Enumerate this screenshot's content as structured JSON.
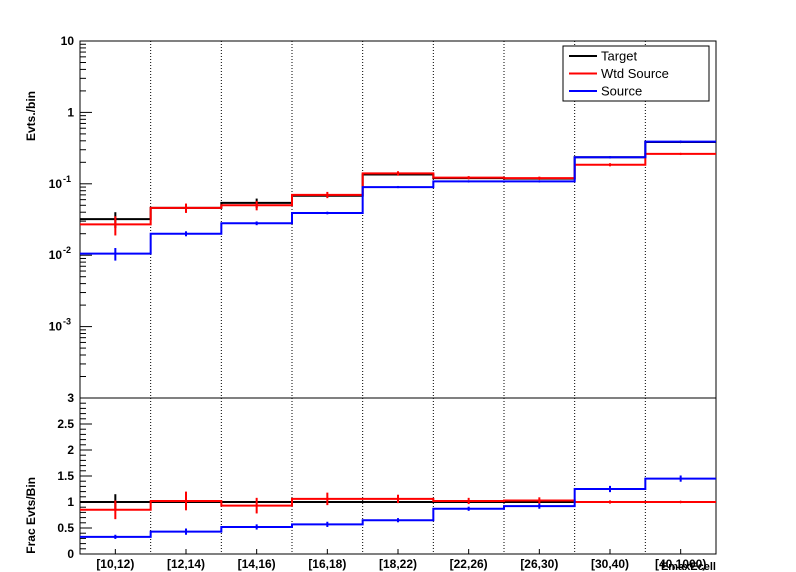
{
  "chart_data": [
    {
      "type": "line",
      "panel": "top",
      "ylabel": "Evts./bin",
      "yscale": "log",
      "ylim": [
        0.0001,
        10
      ],
      "y_ticks": [
        {
          "value": 10,
          "label": "10"
        },
        {
          "value": 1,
          "label": "1"
        },
        {
          "value": 0.1,
          "label": "10",
          "exp": "-1"
        },
        {
          "value": 0.01,
          "label": "10",
          "exp": "-2"
        },
        {
          "value": 0.001,
          "label": "10",
          "exp": "-3"
        }
      ],
      "categories": [
        "[10,12)",
        "[12,14)",
        "[14,16)",
        "[16,18)",
        "[18,22)",
        "[22,26)",
        "[26,30)",
        "[30,40)",
        "[40,1000)"
      ],
      "vertical_grid": true,
      "legend_position": "top-right",
      "series": [
        {
          "name": "Target",
          "color": "#000000",
          "values": [
            0.032,
            0.046,
            0.054,
            0.068,
            0.135,
            0.12,
            0.118,
            0.235,
            0.385
          ],
          "errors": [
            0.25,
            0.0,
            0.15,
            0.0,
            0.0,
            0.0,
            0.0,
            0.0,
            0.0
          ]
        },
        {
          "name": "Wtd Source",
          "color": "#ff0000",
          "values": [
            0.027,
            0.046,
            0.05,
            0.07,
            0.14,
            0.122,
            0.12,
            0.185,
            0.262
          ],
          "errors": [
            0.3,
            0.15,
            0.15,
            0.1,
            0.07,
            0.05,
            0.05,
            0.05,
            0.02
          ]
        },
        {
          "name": "Source",
          "color": "#0000ff",
          "values": [
            0.0105,
            0.02,
            0.028,
            0.039,
            0.09,
            0.108,
            0.108,
            0.235,
            0.39
          ],
          "errors": [
            0.2,
            0.08,
            0.06,
            0.04,
            0.02,
            0.02,
            0.02,
            0.02,
            0.01
          ]
        }
      ]
    },
    {
      "type": "line",
      "panel": "bottom",
      "ylabel": "Frac Evts/Bin",
      "xlabel": "EmaxEcell",
      "ylim": [
        0,
        3
      ],
      "y_ticks": [
        {
          "value": 0,
          "label": "0"
        },
        {
          "value": 0.5,
          "label": "0.5"
        },
        {
          "value": 1,
          "label": "1"
        },
        {
          "value": 1.5,
          "label": "1.5"
        },
        {
          "value": 2,
          "label": "2"
        },
        {
          "value": 2.5,
          "label": "2.5"
        },
        {
          "value": 3,
          "label": "3"
        }
      ],
      "categories": [
        "[10,12)",
        "[12,14)",
        "[14,16)",
        "[16,18)",
        "[18,22)",
        "[22,26)",
        "[26,30)",
        "[30,40)",
        "[40,1000)"
      ],
      "vertical_grid": true,
      "series": [
        {
          "name": "Target",
          "color": "#000000",
          "values": [
            1.0,
            1.0,
            1.0,
            1.0,
            1.0,
            1.0,
            1.0,
            1.0,
            1.0
          ],
          "errors": [
            0.15,
            0.0,
            0.0,
            0.0,
            0.0,
            0.0,
            0.0,
            0.0,
            0.0
          ]
        },
        {
          "name": "Wtd Source",
          "color": "#ff0000",
          "values": [
            0.85,
            1.02,
            0.93,
            1.06,
            1.06,
            1.02,
            1.03,
            1.0,
            1.0
          ],
          "errors": [
            0.18,
            0.18,
            0.15,
            0.12,
            0.08,
            0.06,
            0.06,
            0.03,
            0.02
          ]
        },
        {
          "name": "Source",
          "color": "#0000ff",
          "values": [
            0.33,
            0.43,
            0.52,
            0.57,
            0.65,
            0.87,
            0.92,
            1.25,
            1.45
          ],
          "errors": [
            0.04,
            0.06,
            0.05,
            0.05,
            0.04,
            0.04,
            0.05,
            0.06,
            0.06
          ]
        }
      ]
    }
  ]
}
